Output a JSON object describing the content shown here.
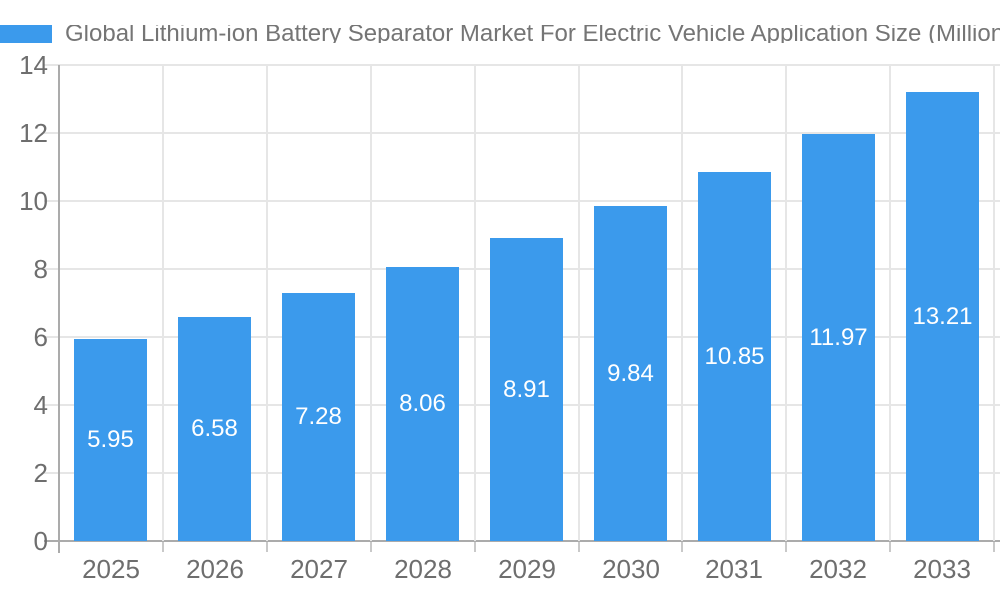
{
  "legend": {
    "label": "Global Lithium-ion Battery Separator Market For Electric Vehicle Application Size (Million"
  },
  "chart_data": {
    "type": "bar",
    "title": "Global Lithium-ion Battery Separator Market For Electric Vehicle Application Size (Million",
    "categories": [
      "2025",
      "2026",
      "2027",
      "2028",
      "2029",
      "2030",
      "2031",
      "2032",
      "2033"
    ],
    "values": [
      5.95,
      6.58,
      7.28,
      8.06,
      8.91,
      9.84,
      10.85,
      11.97,
      13.21
    ],
    "bar_value_labels": [
      "5.95",
      "6.58",
      "7.28",
      "8.06",
      "8.91",
      "9.84",
      "10.85",
      "11.97",
      "13.21"
    ],
    "xlabel": "",
    "ylabel": "",
    "ylim": [
      0,
      14
    ],
    "yticks": [
      0,
      2,
      4,
      6,
      8,
      10,
      12,
      14
    ],
    "grid": true,
    "legend_position": "top-left",
    "bar_color": "#3B9AEC",
    "bar_label_color": "#FFFFFF",
    "axis_line_color": "#ABABAB",
    "gridline_color": "#E6E6E6",
    "tick_mark_color": "#C9C9C9",
    "axis_label_color": "#6E6E6E",
    "title_color": "#757575"
  }
}
